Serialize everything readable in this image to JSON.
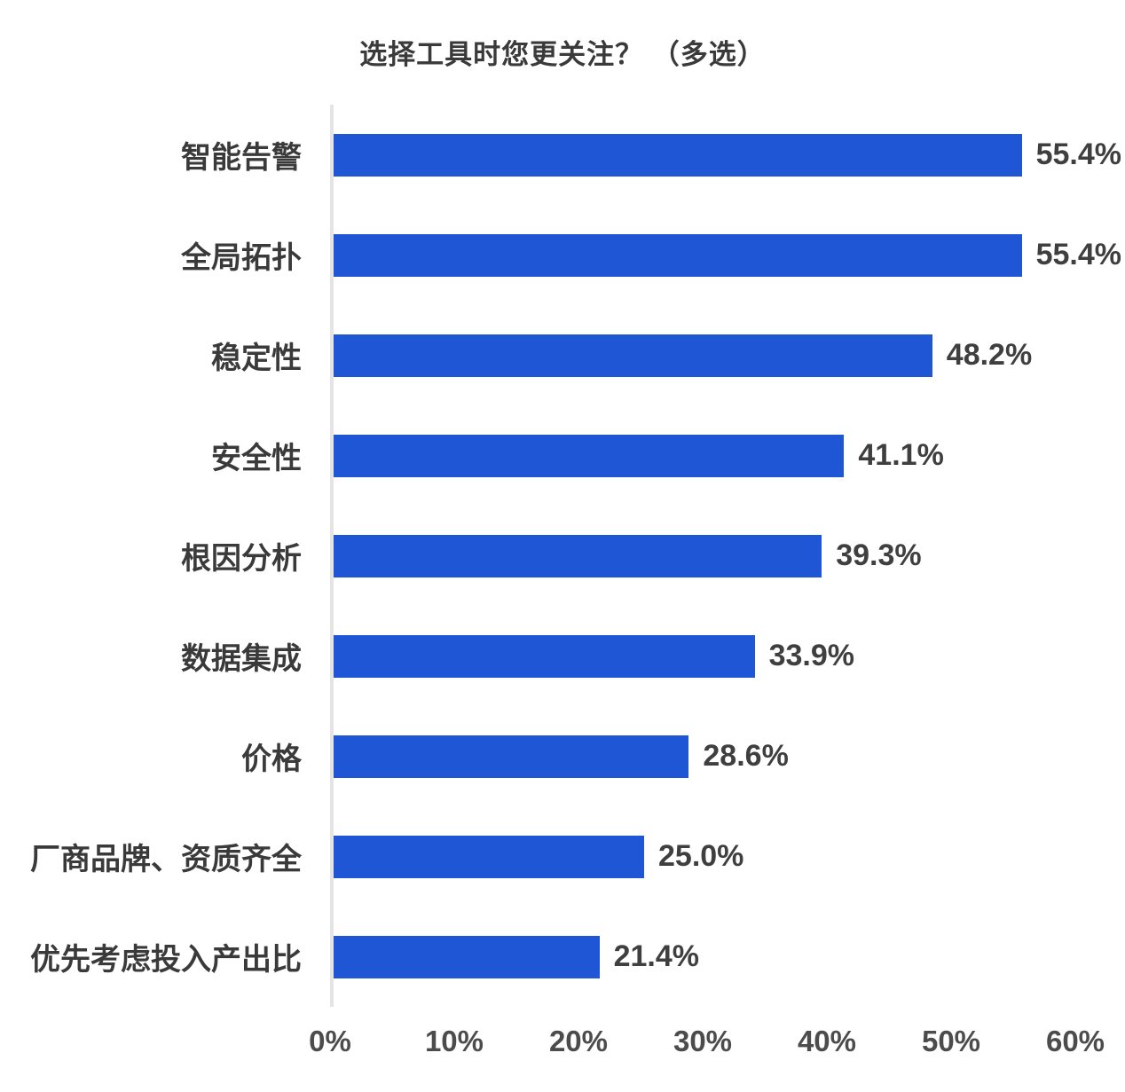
{
  "title": "选择工具时您更关注？ （多选）",
  "chart_data": {
    "type": "bar",
    "orientation": "horizontal",
    "title": "选择工具时您更关注？ （多选）",
    "categories": [
      "智能告警",
      "全局拓扑",
      "稳定性",
      "安全性",
      "根因分析",
      "数据集成",
      "价格",
      "厂商品牌、资质齐全",
      "优先考虑投入产出比"
    ],
    "values": [
      55.4,
      55.4,
      48.2,
      41.1,
      39.3,
      33.9,
      28.6,
      25.0,
      21.4
    ],
    "value_labels": [
      "55.4%",
      "55.4%",
      "48.2%",
      "41.1%",
      "39.3%",
      "33.9%",
      "28.6%",
      "25.0%",
      "21.4%"
    ],
    "xlabel": "",
    "ylabel": "",
    "xlim": [
      0,
      60
    ],
    "x_ticks": [
      "0%",
      "10%",
      "20%",
      "30%",
      "40%",
      "50%",
      "60%"
    ],
    "grid": "off",
    "legend": "none",
    "bar_color": "#1e56d6",
    "axis_line_color": "#e4e4e4",
    "text_color": "#3a3a3a"
  }
}
